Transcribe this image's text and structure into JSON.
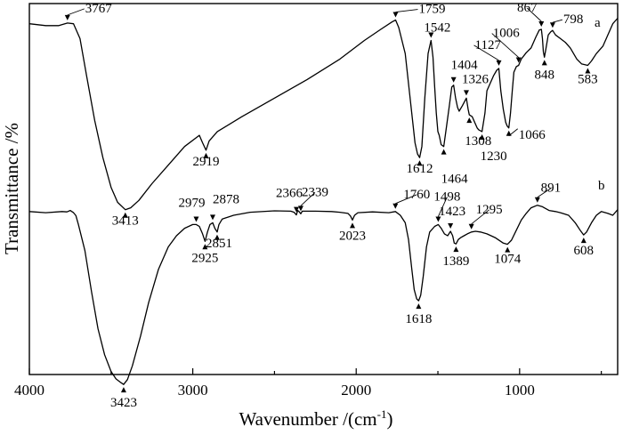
{
  "chart_data": {
    "type": "line",
    "xlabel": "Wavenumber /(cm",
    "xlabel_sup": "-1",
    "xlabel_end": ")",
    "ylabel": "Transmittance /%",
    "xlim": [
      4000,
      400
    ],
    "x_reversed": true,
    "x_ticks": [
      4000,
      3000,
      2000,
      1000
    ],
    "x_tick_labels": [
      "4000",
      "3000",
      "2000",
      "1000"
    ],
    "y_ticks_shown": false,
    "grid": false,
    "series": [
      {
        "name": "a",
        "points": [
          [
            4000,
            96
          ],
          [
            3900,
            95.5
          ],
          [
            3820,
            95.5
          ],
          [
            3767,
            96.2
          ],
          [
            3730,
            96
          ],
          [
            3690,
            92
          ],
          [
            3650,
            82
          ],
          [
            3600,
            70
          ],
          [
            3550,
            60
          ],
          [
            3500,
            52
          ],
          [
            3460,
            48
          ],
          [
            3413,
            46
          ],
          [
            3380,
            46.5
          ],
          [
            3330,
            48.5
          ],
          [
            3250,
            53
          ],
          [
            3150,
            58
          ],
          [
            3050,
            63
          ],
          [
            2960,
            66
          ],
          [
            2940,
            64
          ],
          [
            2919,
            62
          ],
          [
            2900,
            64.5
          ],
          [
            2850,
            67
          ],
          [
            2700,
            71
          ],
          [
            2500,
            76
          ],
          [
            2300,
            81
          ],
          [
            2100,
            86.5
          ],
          [
            1950,
            91.5
          ],
          [
            1850,
            94.5
          ],
          [
            1780,
            96.5
          ],
          [
            1759,
            97
          ],
          [
            1740,
            95
          ],
          [
            1700,
            88
          ],
          [
            1670,
            76
          ],
          [
            1640,
            64
          ],
          [
            1625,
            61
          ],
          [
            1612,
            60
          ],
          [
            1598,
            63
          ],
          [
            1580,
            76
          ],
          [
            1560,
            88
          ],
          [
            1545,
            91
          ],
          [
            1542,
            91.5
          ],
          [
            1530,
            87
          ],
          [
            1520,
            79
          ],
          [
            1510,
            72
          ],
          [
            1500,
            67
          ],
          [
            1492,
            66
          ],
          [
            1480,
            63.5
          ],
          [
            1464,
            63
          ],
          [
            1450,
            67.5
          ],
          [
            1430,
            74
          ],
          [
            1415,
            79
          ],
          [
            1404,
            79.5
          ],
          [
            1392,
            76
          ],
          [
            1380,
            73.5
          ],
          [
            1370,
            72.5
          ],
          [
            1350,
            74
          ],
          [
            1326,
            76
          ],
          [
            1315,
            73
          ],
          [
            1308,
            71.5
          ],
          [
            1290,
            71
          ],
          [
            1260,
            68
          ],
          [
            1250,
            67.5
          ],
          [
            1230,
            67
          ],
          [
            1212,
            72
          ],
          [
            1200,
            78
          ],
          [
            1180,
            80
          ],
          [
            1160,
            82
          ],
          [
            1140,
            83.5
          ],
          [
            1127,
            84
          ],
          [
            1115,
            78
          ],
          [
            1100,
            73
          ],
          [
            1085,
            69.5
          ],
          [
            1076,
            68.5
          ],
          [
            1066,
            68
          ],
          [
            1056,
            72
          ],
          [
            1045,
            78
          ],
          [
            1035,
            83
          ],
          [
            1020,
            84.5
          ],
          [
            1006,
            84.8
          ],
          [
            990,
            86.5
          ],
          [
            960,
            88.2
          ],
          [
            930,
            89.5
          ],
          [
            900,
            92.5
          ],
          [
            880,
            94.3
          ],
          [
            867,
            94.5
          ],
          [
            860,
            92
          ],
          [
            855,
            88.5
          ],
          [
            848,
            87
          ],
          [
            840,
            89
          ],
          [
            825,
            93
          ],
          [
            810,
            93.8
          ],
          [
            798,
            94.2
          ],
          [
            780,
            93
          ],
          [
            750,
            92
          ],
          [
            720,
            91
          ],
          [
            690,
            89.5
          ],
          [
            650,
            86.5
          ],
          [
            620,
            85.2
          ],
          [
            600,
            85
          ],
          [
            583,
            84.8
          ],
          [
            560,
            86
          ],
          [
            530,
            88
          ],
          [
            490,
            90
          ],
          [
            460,
            93
          ],
          [
            430,
            96
          ],
          [
            400,
            97.5
          ]
        ]
      },
      {
        "name": "b",
        "points": [
          [
            4000,
            45.5
          ],
          [
            3900,
            45.2
          ],
          [
            3800,
            45.5
          ],
          [
            3770,
            45.4
          ],
          [
            3750,
            45.8
          ],
          [
            3730,
            45.2
          ],
          [
            3715,
            44.4
          ],
          [
            3700,
            42
          ],
          [
            3660,
            35
          ],
          [
            3620,
            24
          ],
          [
            3580,
            14
          ],
          [
            3540,
            7
          ],
          [
            3500,
            2.5
          ],
          [
            3470,
            0.5
          ],
          [
            3440,
            -0.5
          ],
          [
            3423,
            -1
          ],
          [
            3400,
            0.3
          ],
          [
            3370,
            4
          ],
          [
            3320,
            12
          ],
          [
            3270,
            21
          ],
          [
            3210,
            30
          ],
          [
            3150,
            36
          ],
          [
            3100,
            39
          ],
          [
            3050,
            41
          ],
          [
            3000,
            42
          ],
          [
            2979,
            42
          ],
          [
            2960,
            41.5
          ],
          [
            2940,
            39.5
          ],
          [
            2925,
            37.5
          ],
          [
            2910,
            40
          ],
          [
            2895,
            42
          ],
          [
            2878,
            42.5
          ],
          [
            2865,
            41
          ],
          [
            2851,
            40
          ],
          [
            2840,
            42
          ],
          [
            2820,
            43.5
          ],
          [
            2750,
            44.5
          ],
          [
            2650,
            45.3
          ],
          [
            2500,
            45.7
          ],
          [
            2400,
            45.6
          ],
          [
            2380,
            45.3
          ],
          [
            2366,
            44.6
          ],
          [
            2358,
            45.8
          ],
          [
            2350,
            45.5
          ],
          [
            2339,
            44.9
          ],
          [
            2330,
            45.6
          ],
          [
            2250,
            45.6
          ],
          [
            2150,
            45.5
          ],
          [
            2100,
            45.3
          ],
          [
            2050,
            45
          ],
          [
            2035,
            44.3
          ],
          [
            2023,
            43.2
          ],
          [
            2010,
            44.5
          ],
          [
            1990,
            45.2
          ],
          [
            1900,
            45.4
          ],
          [
            1800,
            45.2
          ],
          [
            1760,
            45.5
          ],
          [
            1730,
            44.5
          ],
          [
            1700,
            42.5
          ],
          [
            1680,
            38
          ],
          [
            1660,
            30
          ],
          [
            1645,
            24.5
          ],
          [
            1630,
            22
          ],
          [
            1618,
            21.5
          ],
          [
            1605,
            23
          ],
          [
            1590,
            28
          ],
          [
            1570,
            36
          ],
          [
            1550,
            40
          ],
          [
            1520,
            41.5
          ],
          [
            1498,
            42
          ],
          [
            1480,
            41
          ],
          [
            1460,
            39.5
          ],
          [
            1440,
            39
          ],
          [
            1423,
            40.2
          ],
          [
            1410,
            39
          ],
          [
            1400,
            37
          ],
          [
            1389,
            36.8
          ],
          [
            1375,
            38
          ],
          [
            1360,
            38.5
          ],
          [
            1340,
            39
          ],
          [
            1320,
            39.5
          ],
          [
            1295,
            40
          ],
          [
            1270,
            40.2
          ],
          [
            1240,
            40
          ],
          [
            1200,
            39.5
          ],
          [
            1150,
            38.5
          ],
          [
            1100,
            37
          ],
          [
            1074,
            36.7
          ],
          [
            1050,
            37.8
          ],
          [
            1020,
            40.5
          ],
          [
            990,
            43.2
          ],
          [
            960,
            45
          ],
          [
            930,
            46.5
          ],
          [
            891,
            47.2
          ],
          [
            860,
            46.8
          ],
          [
            820,
            45.8
          ],
          [
            780,
            45.5
          ],
          [
            750,
            45.2
          ],
          [
            700,
            44.5
          ],
          [
            660,
            42.5
          ],
          [
            630,
            40.5
          ],
          [
            608,
            39.2
          ],
          [
            590,
            40
          ],
          [
            560,
            42.5
          ],
          [
            530,
            44.5
          ],
          [
            500,
            45.5
          ],
          [
            460,
            45
          ],
          [
            430,
            44.5
          ],
          [
            400,
            46
          ]
        ]
      }
    ],
    "annotations": [
      {
        "series": "a",
        "x": 3767,
        "label": "3767"
      },
      {
        "series": "a",
        "x": 3413,
        "label": "3413"
      },
      {
        "series": "a",
        "x": 2919,
        "label": "2919"
      },
      {
        "series": "a",
        "x": 1759,
        "label": "1759"
      },
      {
        "series": "a",
        "x": 1612,
        "label": "1612"
      },
      {
        "series": "a",
        "x": 1542,
        "label": "1542"
      },
      {
        "series": "a",
        "x": 1464,
        "label": "1464"
      },
      {
        "series": "a",
        "x": 1404,
        "label": "1404"
      },
      {
        "series": "a",
        "x": 1326,
        "label": "1326"
      },
      {
        "series": "a",
        "x": 1308,
        "label": "1308"
      },
      {
        "series": "a",
        "x": 1230,
        "label": "1230"
      },
      {
        "series": "a",
        "x": 1127,
        "label": "1127"
      },
      {
        "series": "a",
        "x": 1066,
        "label": "1066"
      },
      {
        "series": "a",
        "x": 1006,
        "label": "1006"
      },
      {
        "series": "a",
        "x": 867,
        "label": "867"
      },
      {
        "series": "a",
        "x": 848,
        "label": "848"
      },
      {
        "series": "a",
        "x": 798,
        "label": "798"
      },
      {
        "series": "a",
        "x": 583,
        "label": "583"
      },
      {
        "series": "b",
        "x": 3423,
        "label": "3423"
      },
      {
        "series": "b",
        "x": 2979,
        "label": "2979"
      },
      {
        "series": "b",
        "x": 2925,
        "label": "2925"
      },
      {
        "series": "b",
        "x": 2878,
        "label": "2878"
      },
      {
        "series": "b",
        "x": 2851,
        "label": "2851"
      },
      {
        "series": "b",
        "x": 2366,
        "label": "2366"
      },
      {
        "series": "b",
        "x": 2339,
        "label": "2339"
      },
      {
        "series": "b",
        "x": 2023,
        "label": "2023"
      },
      {
        "series": "b",
        "x": 1760,
        "label": "1760"
      },
      {
        "series": "b",
        "x": 1618,
        "label": "1618"
      },
      {
        "series": "b",
        "x": 1498,
        "label": "1498"
      },
      {
        "series": "b",
        "x": 1423,
        "label": "1423"
      },
      {
        "series": "b",
        "x": 1389,
        "label": "1389"
      },
      {
        "series": "b",
        "x": 1295,
        "label": "1295"
      },
      {
        "series": "b",
        "x": 1074,
        "label": "1074"
      },
      {
        "series": "b",
        "x": 891,
        "label": "891"
      },
      {
        "series": "b",
        "x": 608,
        "label": "608"
      }
    ]
  }
}
